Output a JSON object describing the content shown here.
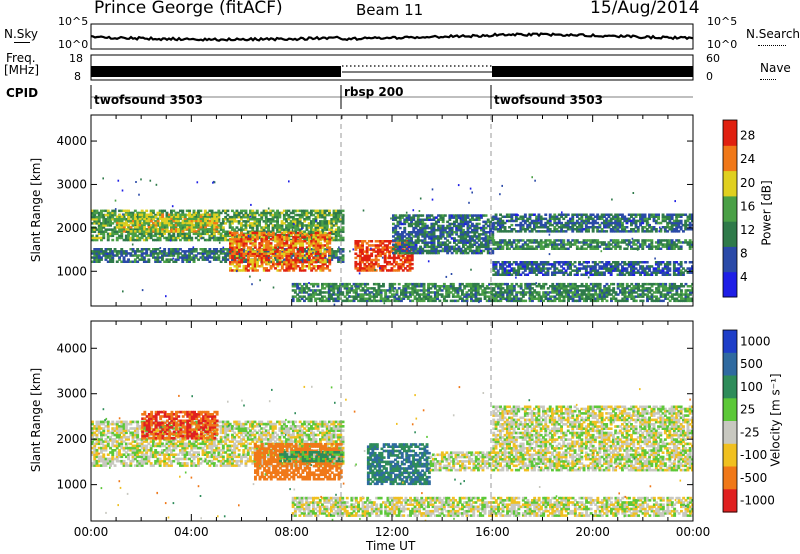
{
  "header": {
    "station": "Prince George (fitACF)",
    "beam": "Beam 11",
    "date": "15/Aug/2014"
  },
  "strip_labels": {
    "nsky": "N.Sky",
    "nsearch": "N.Search",
    "freq": "Freq.",
    "freq_unit": "[MHz]",
    "nave": "Nave",
    "cpid": "CPID",
    "noise_ticks_left": [
      "10^5",
      "10^0"
    ],
    "noise_ticks_right": [
      "10^5",
      "10^0"
    ],
    "freq_ticks": [
      "18",
      "8"
    ],
    "nave_ticks": [
      "60",
      "0"
    ]
  },
  "cpid_segments": [
    {
      "label": "twofsound 3503",
      "start_hour": 0,
      "end_hour": 10
    },
    {
      "label": "rbsp 200",
      "start_hour": 10,
      "end_hour": 16
    },
    {
      "label": "twofsound 3503",
      "start_hour": 16,
      "end_hour": 24
    }
  ],
  "x_axis": {
    "label": "Time UT",
    "ticks": [
      "00:00",
      "04:00",
      "08:00",
      "12:00",
      "16:00",
      "20:00",
      "00:00"
    ]
  },
  "colorbars": {
    "power": {
      "label": "Power [dB]",
      "ticks": [
        "28",
        "24",
        "20",
        "16",
        "12",
        "8",
        "4"
      ],
      "colors": [
        "#1e1ee6",
        "#2a4aa8",
        "#2f7a4a",
        "#4aa046",
        "#e0d020",
        "#f07818",
        "#e02010"
      ]
    },
    "velocity": {
      "label": "Velocity [m s⁻¹]",
      "ticks": [
        "1000",
        "500",
        "100",
        "25",
        "-25",
        "-100",
        "-500",
        "-1000"
      ],
      "colors": [
        "#1e3ec8",
        "#2f6aa0",
        "#2e8c5a",
        "#5cc838",
        "#c8c8c0",
        "#f0c020",
        "#f07818",
        "#e02020"
      ]
    }
  },
  "chart_data": [
    {
      "type": "heatmap",
      "name": "power",
      "ylabel": "Slant Range [km]",
      "xlabel": "Time UT",
      "xlim": [
        0,
        24
      ],
      "ylim": [
        200,
        4600
      ],
      "yticks": [
        1000,
        2000,
        3000,
        4000
      ],
      "colorbar_label": "Power [dB]",
      "clim": [
        0,
        30
      ],
      "regions": [
        {
          "t0": 0.0,
          "t1": 10.0,
          "r0": 1700,
          "r1": 2400,
          "value": 14
        },
        {
          "t0": 0.0,
          "t1": 10.0,
          "r0": 1200,
          "r1": 1500,
          "value": 10
        },
        {
          "t0": 1.0,
          "t1": 5.0,
          "r0": 1900,
          "r1": 2300,
          "value": 18
        },
        {
          "t0": 5.5,
          "t1": 9.5,
          "r0": 1000,
          "r1": 1900,
          "value": 24
        },
        {
          "t0": 10.5,
          "t1": 12.8,
          "r0": 1000,
          "r1": 1700,
          "value": 27
        },
        {
          "t0": 12.0,
          "t1": 16.0,
          "r0": 1400,
          "r1": 2300,
          "value": 9
        },
        {
          "t0": 8.0,
          "t1": 24.0,
          "r0": 300,
          "r1": 700,
          "value": 12
        },
        {
          "t0": 16.0,
          "t1": 24.0,
          "r0": 1900,
          "r1": 2300,
          "value": 9
        },
        {
          "t0": 16.0,
          "t1": 24.0,
          "r0": 1500,
          "r1": 1700,
          "value": 12
        },
        {
          "t0": 16.0,
          "t1": 24.0,
          "r0": 900,
          "r1": 1200,
          "value": 8
        }
      ]
    },
    {
      "type": "heatmap",
      "name": "velocity",
      "ylabel": "Slant Range [km]",
      "xlabel": "Time UT",
      "xlim": [
        0,
        24
      ],
      "ylim": [
        200,
        4600
      ],
      "yticks": [
        1000,
        2000,
        3000,
        4000
      ],
      "colorbar_label": "Velocity [m s⁻¹]",
      "regions": [
        {
          "t0": 0.0,
          "t1": 10.0,
          "r0": 1400,
          "r1": 2400,
          "value": 0
        },
        {
          "t0": 2.0,
          "t1": 5.0,
          "r0": 2000,
          "r1": 2600,
          "value": -300
        },
        {
          "t0": 6.5,
          "t1": 10.0,
          "r0": 1100,
          "r1": 1900,
          "value": -200
        },
        {
          "t0": 7.5,
          "t1": 10.0,
          "r0": 1500,
          "r1": 1700,
          "value": 80
        },
        {
          "t0": 11.0,
          "t1": 13.5,
          "r0": 1000,
          "r1": 1900,
          "value": 300
        },
        {
          "t0": 13.5,
          "t1": 16.0,
          "r0": 1300,
          "r1": 1700,
          "value": 0
        },
        {
          "t0": 8.0,
          "t1": 24.0,
          "r0": 300,
          "r1": 700,
          "value": 0
        },
        {
          "t0": 16.0,
          "t1": 24.0,
          "r0": 1300,
          "r1": 2700,
          "value": 0
        }
      ]
    }
  ]
}
